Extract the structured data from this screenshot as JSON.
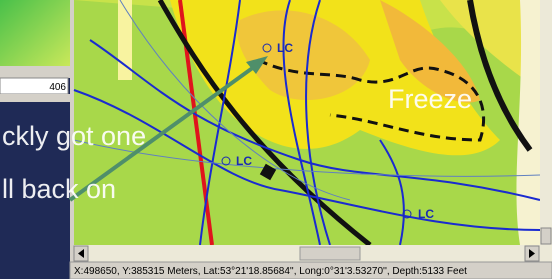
{
  "left_panel": {
    "field_value": "406"
  },
  "map": {
    "labels": [
      "LC",
      "LC",
      "LC"
    ],
    "overlay_text": [
      "ckly got one",
      "ll back on",
      "Freeze"
    ]
  },
  "status_bar": {
    "text": "X:498650,  Y:385315 Meters, Lat:53°21'18.85684'', Long:0°31'3.53270'',  Depth:5133 Feet"
  }
}
